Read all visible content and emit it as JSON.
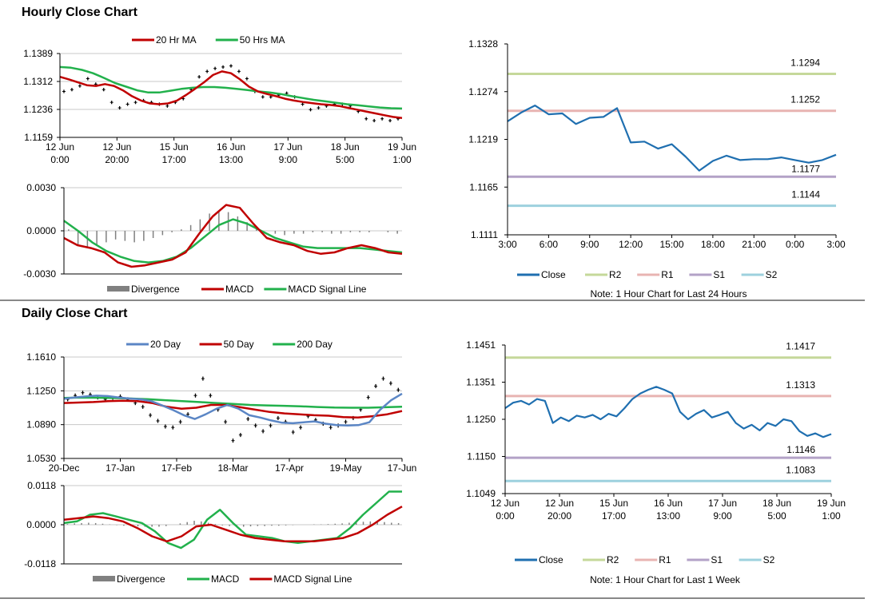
{
  "sections": {
    "hourly_title": "Hourly Close Chart",
    "daily_title": "Daily Close Chart"
  },
  "colors": {
    "ma20": "#C00000",
    "ma50": "#22B14C",
    "day20": "#5B86C5",
    "close": "#1F6FB0",
    "r2": "#C5D89A",
    "r1": "#E8B4B2",
    "s1": "#B3A2C7",
    "s2": "#9DD1DE",
    "divergence": "#808080",
    "price_bar": "#000000"
  },
  "chart_data": [
    {
      "id": "hourly-price",
      "type": "line",
      "legend": [
        "20 Hr MA",
        "50 Hrs MA"
      ],
      "xticks": [
        "12 Jun|0:00",
        "12 Jun|20:00",
        "15 Jun|17:00",
        "16 Jun|13:00",
        "17 Jun|9:00",
        "18 Jun|5:00",
        "19 Jun|1:00"
      ],
      "yticks": [
        "1.1389",
        "1.1312",
        "1.1236",
        "1.1159"
      ],
      "ylim": [
        1.1159,
        1.1389
      ],
      "price": [
        1.1285,
        1.129,
        1.13,
        1.132,
        1.1305,
        1.129,
        1.1255,
        1.124,
        1.125,
        1.1255,
        1.126,
        1.1255,
        1.125,
        1.1245,
        1.1255,
        1.1265,
        1.129,
        1.1325,
        1.134,
        1.1348,
        1.1352,
        1.1355,
        1.134,
        1.132,
        1.1285,
        1.127,
        1.127,
        1.1275,
        1.128,
        1.127,
        1.125,
        1.1235,
        1.124,
        1.1245,
        1.125,
        1.125,
        1.1245,
        1.123,
        1.121,
        1.1205,
        1.121,
        1.1205,
        1.121
      ],
      "series": [
        {
          "name": "20 Hr MA",
          "values": [
            1.1325,
            1.1318,
            1.131,
            1.1302,
            1.13,
            1.1305,
            1.13,
            1.1288,
            1.1272,
            1.126,
            1.1252,
            1.125,
            1.1252,
            1.126,
            1.1275,
            1.1292,
            1.131,
            1.133,
            1.134,
            1.1335,
            1.1318,
            1.1298,
            1.1285,
            1.1278,
            1.1272,
            1.1265,
            1.126,
            1.1256,
            1.1253,
            1.125,
            1.1248,
            1.1245,
            1.124,
            1.1235,
            1.123,
            1.1225,
            1.122,
            1.1215,
            1.1212
          ]
        },
        {
          "name": "50 Hrs MA",
          "values": [
            1.1352,
            1.135,
            1.1344,
            1.1335,
            1.1322,
            1.1308,
            1.1298,
            1.1288,
            1.1282,
            1.1282,
            1.1287,
            1.1292,
            1.1295,
            1.1297,
            1.1297,
            1.1295,
            1.1292,
            1.1289,
            1.1285,
            1.1282,
            1.1278,
            1.1272,
            1.1267,
            1.1262,
            1.1258,
            1.1254,
            1.125,
            1.1247,
            1.1244,
            1.1241,
            1.1239,
            1.1238
          ]
        }
      ]
    },
    {
      "id": "hourly-macd",
      "type": "line",
      "legend": [
        "Divergence",
        "MACD",
        "MACD Signal Line"
      ],
      "yticks": [
        "0.0030",
        "0.0000",
        "-0.0030"
      ],
      "ylim": [
        -0.003,
        0.003
      ],
      "divergence": [
        0.0001,
        -0.001,
        -0.0012,
        -0.001,
        -0.0008,
        -0.0006,
        -0.0007,
        -0.0008,
        -0.0007,
        -0.0005,
        -0.0003,
        -0.0001,
        0.0001,
        0.0004,
        0.0008,
        0.0012,
        0.0014,
        0.0013,
        0.001,
        0.0006,
        0.0003,
        0.0,
        -0.0002,
        -0.0003,
        -0.0002,
        -0.0002,
        -0.0001,
        -0.0001,
        -0.0002,
        -0.0002,
        -0.0001,
        -0.0001,
        -0.0001,
        0.0,
        -0.0001,
        -0.0002
      ],
      "series": [
        {
          "name": "MACD",
          "values": [
            -0.0005,
            -0.001,
            -0.0012,
            -0.0015,
            -0.0022,
            -0.0025,
            -0.0024,
            -0.0022,
            -0.002,
            -0.0015,
            -0.0002,
            0.001,
            0.0018,
            0.0016,
            0.0005,
            -0.0005,
            -0.0008,
            -0.001,
            -0.0014,
            -0.0016,
            -0.0015,
            -0.0012,
            -0.001,
            -0.0012,
            -0.0015,
            -0.0016
          ]
        },
        {
          "name": "MACD Signal Line",
          "values": [
            0.0007,
            0.0,
            -0.0008,
            -0.0014,
            -0.0018,
            -0.0021,
            -0.0022,
            -0.0021,
            -0.0018,
            -0.0012,
            -0.0004,
            0.0004,
            0.0008,
            0.0005,
            0.0,
            -0.0005,
            -0.0008,
            -0.0011,
            -0.0012,
            -0.0012,
            -0.0012,
            -0.0012,
            -0.0013,
            -0.0014,
            -0.0015
          ]
        }
      ]
    },
    {
      "id": "hourly-close-24h",
      "type": "line",
      "xticks": [
        "3:00",
        "6:00",
        "9:00",
        "12:00",
        "15:00",
        "18:00",
        "21:00",
        "0:00",
        "3:00"
      ],
      "yticks": [
        "1.1328",
        "1.1274",
        "1.1219",
        "1.1165",
        "1.1111"
      ],
      "ylim": [
        1.1111,
        1.1328
      ],
      "levels": [
        {
          "name": "R2",
          "value": 1.1294,
          "label": "1.1294"
        },
        {
          "name": "R1",
          "value": 1.1252,
          "label": "1.1252"
        },
        {
          "name": "S1",
          "value": 1.1177,
          "label": "1.1177"
        },
        {
          "name": "S2",
          "value": 1.1144,
          "label": "1.1144"
        }
      ],
      "series": [
        {
          "name": "Close",
          "values": [
            1.124,
            1.125,
            1.1258,
            1.1248,
            1.1249,
            1.1237,
            1.1244,
            1.1245,
            1.1255,
            1.1216,
            1.1217,
            1.1209,
            1.1214,
            1.12,
            1.1184,
            1.1195,
            1.1201,
            1.1196,
            1.1197,
            1.1197,
            1.1199,
            1.1196,
            1.1193,
            1.1196,
            1.1202
          ]
        }
      ],
      "legend": [
        "Close",
        "R2",
        "R1",
        "S1",
        "S2"
      ],
      "note": "Note: 1 Hour Chart for Last 24 Hours"
    },
    {
      "id": "daily-price",
      "type": "line",
      "legend": [
        "20 Day",
        "50 Day",
        "200 Day"
      ],
      "xticks": [
        "20-Dec",
        "17-Jan",
        "17-Feb",
        "18-Mar",
        "17-Apr",
        "19-May",
        "17-Jun"
      ],
      "yticks": [
        "1.1610",
        "1.1250",
        "1.0890",
        "1.0530"
      ],
      "ylim": [
        1.053,
        1.161
      ],
      "price": [
        1.116,
        1.12,
        1.123,
        1.121,
        1.118,
        1.116,
        1.1175,
        1.119,
        1.116,
        1.112,
        1.108,
        1.099,
        1.093,
        1.087,
        1.086,
        1.092,
        1.1,
        1.12,
        1.138,
        1.12,
        1.105,
        1.092,
        1.072,
        1.078,
        1.095,
        1.088,
        1.082,
        1.088,
        1.096,
        1.092,
        1.081,
        1.086,
        1.098,
        1.094,
        1.09,
        1.086,
        1.088,
        1.092,
        1.096,
        1.105,
        1.118,
        1.13,
        1.138,
        1.133,
        1.126
      ],
      "series": [
        {
          "name": "20 Day",
          "values": [
            1.1165,
            1.118,
            1.119,
            1.1198,
            1.1194,
            1.118,
            1.1168,
            1.116,
            1.114,
            1.1095,
            1.1045,
            1.099,
            1.095,
            1.1,
            1.106,
            1.11,
            1.106,
            1.099,
            1.0965,
            1.0935,
            1.091,
            1.0905,
            1.0915,
            1.0925,
            1.09,
            1.0885,
            1.088,
            1.0885,
            1.0915,
            1.105,
            1.115,
            1.122
          ]
        },
        {
          "name": "50 Day",
          "values": [
            1.112,
            1.1125,
            1.113,
            1.114,
            1.1145,
            1.114,
            1.112,
            1.108,
            1.106,
            1.107,
            1.11,
            1.11,
            1.1075,
            1.105,
            1.1025,
            1.101,
            1.1,
            1.099,
            1.0985,
            1.097,
            1.0965,
            1.098,
            1.1,
            1.1035
          ]
        },
        {
          "name": "200 Day",
          "values": [
            1.1175,
            1.1178,
            1.1176,
            1.1173,
            1.1168,
            1.116,
            1.115,
            1.114,
            1.113,
            1.112,
            1.111,
            1.11,
            1.1095,
            1.109,
            1.1085,
            1.1078,
            1.1072,
            1.107,
            1.107,
            1.1075,
            1.108
          ]
        }
      ]
    },
    {
      "id": "daily-macd",
      "type": "line",
      "legend": [
        "Divergence",
        "MACD",
        "MACD Signal Line"
      ],
      "yticks": [
        "0.0118",
        "0.0000",
        "-0.0118"
      ],
      "ylim": [
        -0.0118,
        0.0118
      ],
      "divergence": [
        0.0002,
        0.0004,
        0.0005,
        0.0006,
        0.0005,
        0.0003,
        0.0001,
        -0.0001,
        -0.0003,
        -0.0004,
        -0.0005,
        -0.0006,
        -0.0006,
        -0.0006,
        -0.0004,
        0.0,
        0.0004,
        0.0008,
        0.0012,
        0.001,
        0.0006,
        0.0002,
        -0.0002,
        -0.0004,
        -0.0006,
        -0.0006,
        -0.0005,
        -0.0004,
        -0.0004,
        -0.0003,
        -0.0003,
        -0.0002,
        -0.0001,
        0.0,
        0.0,
        0.0001,
        0.0001,
        0.0002,
        0.0003,
        0.0004,
        0.0006,
        0.0008,
        0.0009,
        0.001,
        0.0009,
        0.0008,
        0.0006,
        0.0005
      ],
      "series": [
        {
          "name": "MACD",
          "values": [
            0.0005,
            0.001,
            0.003,
            0.0035,
            0.0025,
            0.0015,
            0.0005,
            -0.002,
            -0.0055,
            -0.007,
            -0.0045,
            0.0015,
            0.0045,
            0.0005,
            -0.003,
            -0.0035,
            -0.004,
            -0.005,
            -0.0055,
            -0.005,
            -0.0045,
            -0.004,
            -0.001,
            0.003,
            0.0065,
            0.01,
            0.01
          ]
        },
        {
          "name": "MACD Signal Line",
          "values": [
            0.0015,
            0.002,
            0.0025,
            0.002,
            0.001,
            -0.001,
            -0.0035,
            -0.005,
            -0.0035,
            -0.0005,
            0.0,
            -0.0015,
            -0.003,
            -0.004,
            -0.0045,
            -0.005,
            -0.005,
            -0.005,
            -0.0045,
            -0.004,
            -0.0025,
            0.0,
            0.003,
            0.0055
          ]
        }
      ]
    },
    {
      "id": "hourly-close-week",
      "type": "line",
      "xticks": [
        "12 Jun|0:00",
        "12 Jun|20:00",
        "15 Jun|17:00",
        "16 Jun|13:00",
        "17 Jun|9:00",
        "18 Jun|5:00",
        "19 Jun|1:00"
      ],
      "yticks": [
        "1.1451",
        "1.1351",
        "1.1250",
        "1.1150",
        "1.1049"
      ],
      "ylim": [
        1.1049,
        1.1451
      ],
      "levels": [
        {
          "name": "R2",
          "value": 1.1417,
          "label": "1.1417"
        },
        {
          "name": "R1",
          "value": 1.1313,
          "label": "1.1313"
        },
        {
          "name": "S1",
          "value": 1.1146,
          "label": "1.1146"
        },
        {
          "name": "S2",
          "value": 1.1083,
          "label": "1.1083"
        }
      ],
      "series": [
        {
          "name": "Close",
          "values": [
            1.128,
            1.1295,
            1.13,
            1.129,
            1.1305,
            1.13,
            1.124,
            1.1255,
            1.1245,
            1.126,
            1.1255,
            1.1262,
            1.125,
            1.1265,
            1.1258,
            1.128,
            1.1305,
            1.132,
            1.133,
            1.1338,
            1.133,
            1.132,
            1.127,
            1.125,
            1.1265,
            1.1275,
            1.1255,
            1.1262,
            1.127,
            1.124,
            1.1225,
            1.1235,
            1.122,
            1.124,
            1.1232,
            1.125,
            1.1245,
            1.1218,
            1.1205,
            1.1212,
            1.1202,
            1.121
          ]
        }
      ],
      "legend": [
        "Close",
        "R2",
        "R1",
        "S1",
        "S2"
      ],
      "note": "Note: 1 Hour Chart for Last 1 Week"
    }
  ]
}
